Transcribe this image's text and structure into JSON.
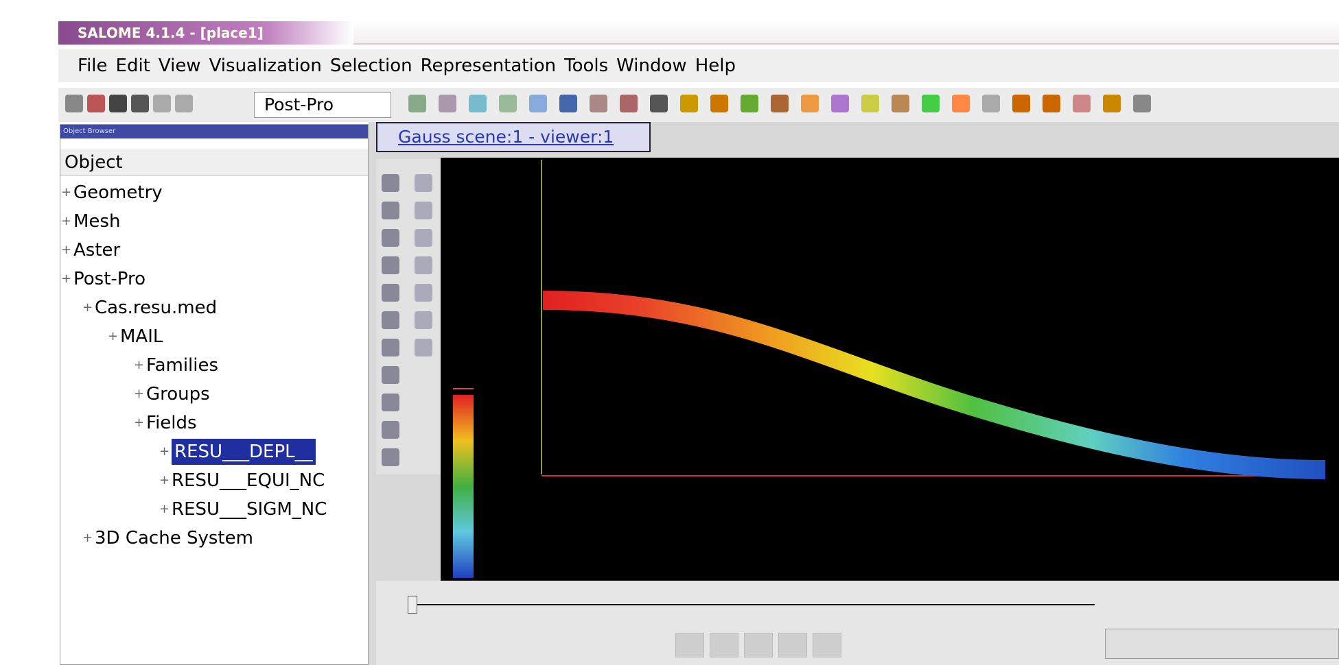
{
  "window": {
    "title": "SALOME 4.1.4 - [place1]"
  },
  "menu": [
    "File",
    "Edit",
    "View",
    "Visualization",
    "Selection",
    "Representation",
    "Tools",
    "Window",
    "Help"
  ],
  "toolbar": {
    "module": "Post-Pro"
  },
  "object_browser": {
    "title": "Object Browser",
    "header": "Object",
    "nodes": [
      {
        "label": "Geometry",
        "level": 0
      },
      {
        "label": "Mesh",
        "level": 0
      },
      {
        "label": "Aster",
        "level": 0
      },
      {
        "label": "Post-Pro",
        "level": 0
      },
      {
        "label": "Cas.resu.med",
        "level": 1
      },
      {
        "label": "MAIL",
        "level": 2
      },
      {
        "label": "Families",
        "level": 3
      },
      {
        "label": "Groups",
        "level": 3
      },
      {
        "label": "Fields",
        "level": 3
      },
      {
        "label": "RESU___DEPL__",
        "level": 4,
        "selected": true
      },
      {
        "label": "RESU___EQUI_NC",
        "level": 4
      },
      {
        "label": "RESU___SIGM_NC",
        "level": 4
      },
      {
        "label": "3D Cache System",
        "level": 1
      }
    ]
  },
  "viewer": {
    "tab": "Gauss scene:1 - viewer:1"
  }
}
